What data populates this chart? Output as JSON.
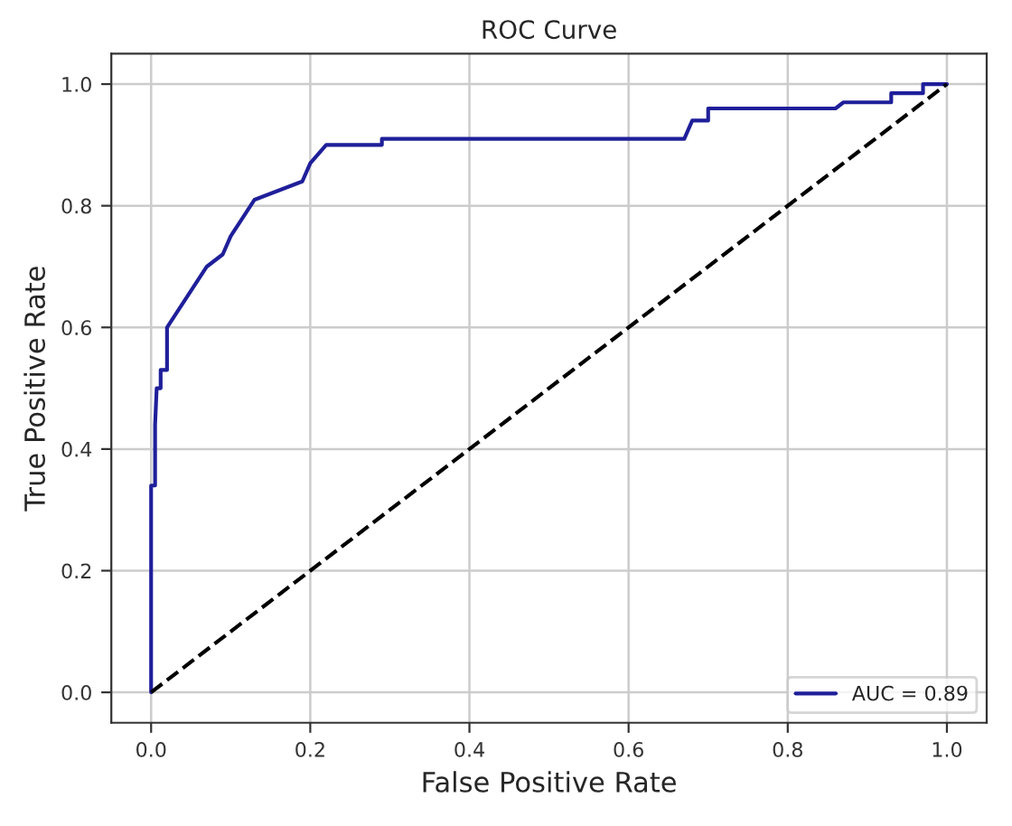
{
  "chart_data": {
    "type": "line",
    "title": "ROC Curve",
    "xlabel": "False Positive Rate",
    "ylabel": "True Positive Rate",
    "xlim": [
      -0.05,
      1.05
    ],
    "ylim": [
      -0.05,
      1.05
    ],
    "xticks": [
      {
        "value": 0,
        "label": "0.0"
      },
      {
        "value": 0.2,
        "label": "0.2"
      },
      {
        "value": 0.4,
        "label": "0.4"
      },
      {
        "value": 0.6,
        "label": "0.6"
      },
      {
        "value": 0.8,
        "label": "0.8"
      },
      {
        "value": 1,
        "label": "1.0"
      }
    ],
    "yticks": [
      {
        "value": 0,
        "label": "0.0"
      },
      {
        "value": 0.2,
        "label": "0.2"
      },
      {
        "value": 0.4,
        "label": "0.4"
      },
      {
        "value": 0.6,
        "label": "0.6"
      },
      {
        "value": 0.8,
        "label": "0.8"
      },
      {
        "value": 1,
        "label": "1.0"
      }
    ],
    "grid": true,
    "legend": "bottom right",
    "series": [
      {
        "name": "AUC = 0.89",
        "color": "#1f1f9a",
        "line_style": "solid",
        "x": [
          0,
          0,
          0,
          0.005,
          0.005,
          0.007,
          0.012,
          0.012,
          0.02,
          0.02,
          0.03,
          0.04,
          0.05,
          0.06,
          0.07,
          0.09,
          0.1,
          0.11,
          0.12,
          0.13,
          0.15,
          0.17,
          0.19,
          0.2,
          0.22,
          0.29,
          0.29,
          0.67,
          0.68,
          0.7,
          0.7,
          0.86,
          0.87,
          0.93,
          0.93,
          0.97,
          0.97,
          1
        ],
        "values": [
          0,
          0.2,
          0.34,
          0.34,
          0.44,
          0.5,
          0.5,
          0.53,
          0.53,
          0.6,
          0.62,
          0.64,
          0.66,
          0.68,
          0.7,
          0.72,
          0.75,
          0.77,
          0.79,
          0.81,
          0.82,
          0.83,
          0.84,
          0.87,
          0.9,
          0.9,
          0.91,
          0.91,
          0.94,
          0.94,
          0.96,
          0.96,
          0.97,
          0.97,
          0.985,
          0.985,
          1,
          1
        ]
      },
      {
        "color": "#000000",
        "line_style": "dashed",
        "x": [
          0,
          1
        ],
        "values": [
          0,
          1
        ]
      }
    ]
  }
}
